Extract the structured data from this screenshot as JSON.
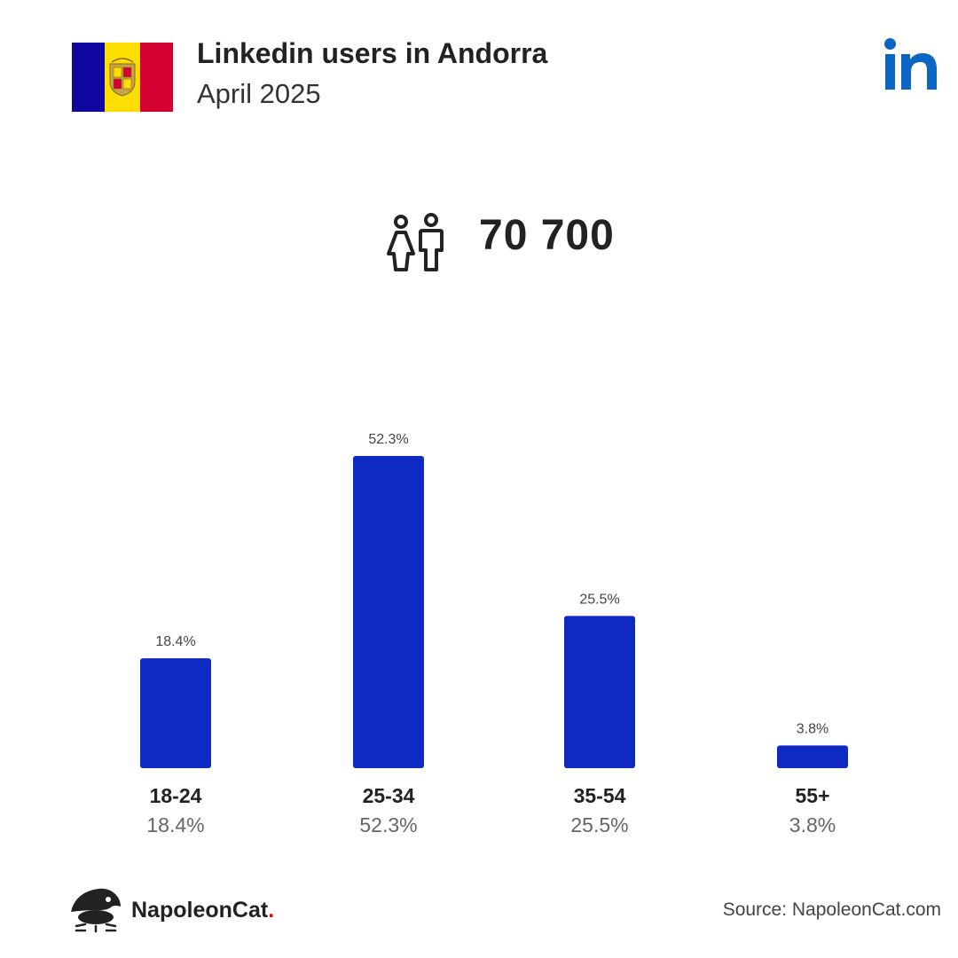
{
  "header": {
    "title": "Linkedin users in Andorra",
    "subtitle": "April 2025"
  },
  "total": {
    "value": "70 700",
    "icon": "people-icon"
  },
  "brand": {
    "logo_icon": "linkedin-logo-icon",
    "logo_text": "in",
    "accent": "#0a66c2"
  },
  "flag": {
    "colors": [
      "#10069f",
      "#fedd00",
      "#d50032"
    ]
  },
  "chart_data": {
    "type": "bar",
    "categories": [
      "18-24",
      "25-34",
      "35-54",
      "55+"
    ],
    "values": [
      18.4,
      52.3,
      25.5,
      3.8
    ],
    "value_labels": [
      "18.4%",
      "52.3%",
      "25.5%",
      "3.8%"
    ],
    "bar_color": "#0f2ac2",
    "ylim": [
      0,
      52.3
    ],
    "grid": false,
    "legend": "none"
  },
  "footer": {
    "brand_name": "NapoleonCat",
    "brand_dot": ".",
    "source": "Source: NapoleonCat.com"
  }
}
